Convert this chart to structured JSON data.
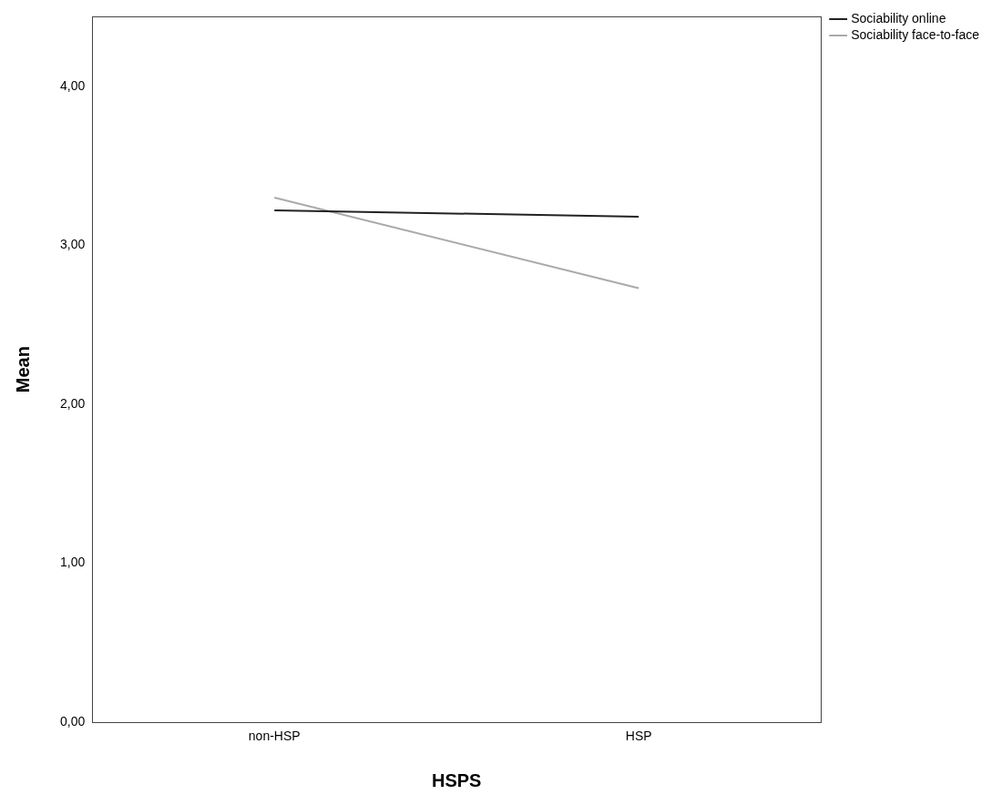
{
  "chart_data": {
    "type": "line",
    "xlabel": "HSPS",
    "ylabel": "Mean",
    "categories": [
      "non-HSP",
      "HSP"
    ],
    "series": [
      {
        "name": "Sociability online",
        "color": "#222222",
        "values": [
          3.22,
          3.18
        ]
      },
      {
        "name": "Sociability face-to-face",
        "color": "#aaaaaa",
        "values": [
          3.3,
          2.73
        ]
      }
    ],
    "ylim": [
      0,
      4.44
    ],
    "yticks": [
      {
        "value": 0,
        "label": "0,00"
      },
      {
        "value": 1,
        "label": "1,00"
      },
      {
        "value": 2,
        "label": "2,00"
      },
      {
        "value": 3,
        "label": "3,00"
      },
      {
        "value": 4,
        "label": "4,00"
      }
    ],
    "grid": false,
    "legend": "top right",
    "marker": "none",
    "line_style": "solid"
  }
}
